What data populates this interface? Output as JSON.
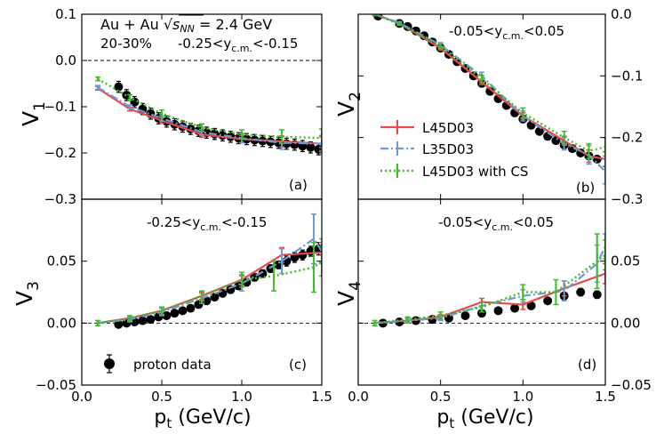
{
  "chart_data": [
    {
      "type": "line",
      "id": "a",
      "panel_label": "(a)",
      "ylabel": "V",
      "ylabel_sub": "1",
      "xlabel": "",
      "annotations": {
        "line1_main": "Au + Au ",
        "line1_sqrt_s": "s",
        "line1_sqrt_sub": "NN",
        "line1_rest": " = 2.4 GeV",
        "line2_centrality": "20-30%",
        "line2_y_pre": "-0.25<y",
        "line2_y_sub": "c.m.",
        "line2_y_post": "<-0.15"
      },
      "xlim": [
        0.0,
        1.5
      ],
      "ylim": [
        -0.3,
        0.1
      ],
      "yticks": [
        -0.3,
        -0.2,
        -0.1,
        0.0,
        0.1
      ],
      "ytick_labels": [
        "−0.3",
        "−0.2",
        "−0.1",
        "0.0",
        "0.1"
      ],
      "reference_line": 0.0,
      "series": [
        {
          "name": "proton data",
          "style": "data",
          "x": [
            0.23,
            0.28,
            0.33,
            0.38,
            0.43,
            0.48,
            0.53,
            0.58,
            0.63,
            0.68,
            0.73,
            0.78,
            0.83,
            0.88,
            0.93,
            0.98,
            1.03,
            1.08,
            1.13,
            1.18,
            1.23,
            1.28,
            1.33,
            1.38,
            1.43,
            1.48
          ],
          "y": [
            -0.057,
            -0.075,
            -0.09,
            -0.105,
            -0.115,
            -0.125,
            -0.132,
            -0.138,
            -0.143,
            -0.148,
            -0.152,
            -0.156,
            -0.159,
            -0.162,
            -0.165,
            -0.168,
            -0.17,
            -0.172,
            -0.174,
            -0.176,
            -0.178,
            -0.18,
            -0.182,
            -0.185,
            -0.188,
            -0.192
          ],
          "err": [
            0.012,
            0.012,
            0.012,
            0.012,
            0.012,
            0.012,
            0.012,
            0.012,
            0.012,
            0.012,
            0.012,
            0.012,
            0.012,
            0.012,
            0.012,
            0.012,
            0.012,
            0.012,
            0.012,
            0.012,
            0.012,
            0.012,
            0.012,
            0.012,
            0.012,
            0.012
          ]
        },
        {
          "name": "L45D03",
          "style": "red",
          "x": [
            0.1,
            0.3,
            0.5,
            0.75,
            1.0,
            1.25,
            1.5
          ],
          "y": [
            -0.06,
            -0.105,
            -0.13,
            -0.16,
            -0.17,
            -0.175,
            -0.18
          ],
          "err": [
            0.004,
            0.004,
            0.006,
            0.006,
            0.008,
            0.012,
            0.015
          ]
        },
        {
          "name": "L35D03",
          "style": "blue",
          "x": [
            0.1,
            0.3,
            0.5,
            0.75,
            1.0,
            1.25,
            1.5
          ],
          "y": [
            -0.058,
            -0.1,
            -0.125,
            -0.155,
            -0.168,
            -0.178,
            -0.18
          ],
          "err": [
            0.004,
            0.004,
            0.006,
            0.006,
            0.01,
            0.014,
            0.018
          ]
        },
        {
          "name": "L45D03 with CS",
          "style": "green",
          "x": [
            0.1,
            0.3,
            0.5,
            0.75,
            1.0,
            1.25,
            1.5
          ],
          "y": [
            -0.04,
            -0.08,
            -0.115,
            -0.145,
            -0.16,
            -0.165,
            -0.168
          ],
          "err": [
            0.004,
            0.006,
            0.008,
            0.008,
            0.01,
            0.015,
            0.02
          ]
        }
      ]
    },
    {
      "type": "line",
      "id": "b",
      "panel_label": "(b)",
      "ylabel": "V",
      "ylabel_sub": "2",
      "xlabel": "",
      "annotations": {
        "y_pre": "-0.05<y",
        "y_sub": "c.m.",
        "y_post": "<0.05"
      },
      "xlim": [
        0.0,
        1.5
      ],
      "ylim": [
        -0.3,
        0.0
      ],
      "yticks": [
        -0.3,
        -0.2,
        -0.1,
        0.0
      ],
      "ytick_labels": [
        "−0.3",
        "−0.2",
        "−0.1",
        "0.0"
      ],
      "series": [
        {
          "name": "proton data",
          "style": "data",
          "x": [
            0.12,
            0.25,
            0.3,
            0.35,
            0.4,
            0.45,
            0.5,
            0.55,
            0.6,
            0.65,
            0.7,
            0.75,
            0.8,
            0.85,
            0.9,
            0.95,
            1.0,
            1.05,
            1.1,
            1.15,
            1.2,
            1.25,
            1.3,
            1.35,
            1.4,
            1.45
          ],
          "y": [
            -0.003,
            -0.015,
            -0.02,
            -0.027,
            -0.035,
            -0.045,
            -0.055,
            -0.065,
            -0.077,
            -0.088,
            -0.1,
            -0.112,
            -0.125,
            -0.137,
            -0.148,
            -0.16,
            -0.17,
            -0.18,
            -0.19,
            -0.198,
            -0.205,
            -0.212,
            -0.218,
            -0.225,
            -0.23,
            -0.235
          ],
          "err": [
            0.003,
            0.003,
            0.003,
            0.003,
            0.003,
            0.003,
            0.003,
            0.003,
            0.003,
            0.003,
            0.003,
            0.003,
            0.003,
            0.003,
            0.003,
            0.003,
            0.003,
            0.003,
            0.003,
            0.003,
            0.003,
            0.003,
            0.003,
            0.003,
            0.003,
            0.003
          ]
        },
        {
          "name": "L45D03",
          "style": "red",
          "x": [
            0.1,
            0.25,
            0.5,
            0.75,
            1.0,
            1.25,
            1.4,
            1.5
          ],
          "y": [
            0.0,
            -0.015,
            -0.055,
            -0.11,
            -0.165,
            -0.205,
            -0.23,
            -0.235
          ],
          "err": [
            0.002,
            0.002,
            0.003,
            0.004,
            0.005,
            0.007,
            0.01,
            0.012
          ]
        },
        {
          "name": "L35D03",
          "style": "blue",
          "x": [
            0.1,
            0.25,
            0.5,
            0.75,
            1.0,
            1.25,
            1.4,
            1.5
          ],
          "y": [
            0.0,
            -0.014,
            -0.05,
            -0.1,
            -0.165,
            -0.21,
            -0.228,
            -0.255
          ],
          "err": [
            0.002,
            0.002,
            0.004,
            0.006,
            0.008,
            0.01,
            0.015,
            0.02
          ]
        },
        {
          "name": "L45D03 with CS",
          "style": "green",
          "x": [
            0.1,
            0.25,
            0.5,
            0.75,
            1.0,
            1.25,
            1.4,
            1.5
          ],
          "y": [
            0.0,
            -0.016,
            -0.052,
            -0.105,
            -0.16,
            -0.2,
            -0.222,
            -0.215
          ],
          "err": [
            0.002,
            0.002,
            0.004,
            0.006,
            0.008,
            0.01,
            0.012,
            0.015
          ]
        }
      ]
    },
    {
      "type": "line",
      "id": "c",
      "panel_label": "(c)",
      "ylabel": "V",
      "ylabel_sub": "3",
      "xlabel": "p",
      "xlabel_sub": "t",
      "xlabel_rest": " (GeV/c)",
      "annotations": {
        "y_pre": "-0.25<y",
        "y_sub": "c.m.",
        "y_post": "<-0.15"
      },
      "xlim": [
        0.0,
        1.5
      ],
      "ylim": [
        -0.05,
        0.1
      ],
      "yticks": [
        -0.05,
        0.0,
        0.05
      ],
      "ytick_labels": [
        "−0.05",
        "0.00",
        "0.05"
      ],
      "xticks": [
        0.0,
        0.5,
        1.0,
        1.5
      ],
      "xtick_labels": [
        "0.0",
        "0.5",
        "1.0",
        "1.5"
      ],
      "reference_line": 0.0,
      "series": [
        {
          "name": "proton data",
          "style": "data",
          "x": [
            0.23,
            0.28,
            0.33,
            0.38,
            0.43,
            0.48,
            0.53,
            0.58,
            0.63,
            0.68,
            0.73,
            0.78,
            0.83,
            0.88,
            0.93,
            0.98,
            1.03,
            1.08,
            1.13,
            1.18,
            1.23,
            1.28,
            1.33,
            1.38,
            1.43,
            1.48
          ],
          "y": [
            -0.001,
            0.0,
            0.001,
            0.002,
            0.003,
            0.005,
            0.006,
            0.008,
            0.01,
            0.012,
            0.015,
            0.018,
            0.021,
            0.024,
            0.027,
            0.03,
            0.033,
            0.037,
            0.04,
            0.044,
            0.047,
            0.05,
            0.053,
            0.055,
            0.058,
            0.06
          ],
          "err": [
            0.002,
            0.002,
            0.002,
            0.002,
            0.002,
            0.002,
            0.002,
            0.002,
            0.002,
            0.002,
            0.002,
            0.002,
            0.002,
            0.002,
            0.002,
            0.002,
            0.003,
            0.003,
            0.003,
            0.003,
            0.003,
            0.004,
            0.004,
            0.004,
            0.004,
            0.005
          ]
        },
        {
          "name": "L45D03",
          "style": "red",
          "x": [
            0.1,
            0.3,
            0.5,
            0.75,
            1.0,
            1.25,
            1.5
          ],
          "y": [
            0.0,
            0.004,
            0.01,
            0.022,
            0.035,
            0.055,
            0.057
          ],
          "err": [
            0.002,
            0.002,
            0.003,
            0.003,
            0.004,
            0.006,
            0.008
          ]
        },
        {
          "name": "L35D03",
          "style": "blue",
          "x": [
            0.1,
            0.3,
            0.5,
            0.75,
            1.0,
            1.25,
            1.45,
            1.5
          ],
          "y": [
            0.0,
            0.003,
            0.009,
            0.02,
            0.032,
            0.05,
            0.068,
            0.058
          ],
          "err": [
            0.002,
            0.002,
            0.003,
            0.004,
            0.006,
            0.01,
            0.02,
            0.01
          ]
        },
        {
          "name": "L45D03 with CS",
          "style": "green",
          "x": [
            0.1,
            0.3,
            0.5,
            0.75,
            1.0,
            1.2,
            1.45,
            1.5
          ],
          "y": [
            0.0,
            0.004,
            0.01,
            0.022,
            0.035,
            0.038,
            0.045,
            0.05
          ],
          "err": [
            0.002,
            0.002,
            0.003,
            0.004,
            0.006,
            0.012,
            0.02,
            0.012
          ]
        }
      ],
      "legend": {
        "placement": "bottom-left",
        "entries": [
          "proton data"
        ]
      }
    },
    {
      "type": "line",
      "id": "d",
      "panel_label": "(d)",
      "ylabel": "V",
      "ylabel_sub": "4",
      "xlabel": "p",
      "xlabel_sub": "t",
      "xlabel_rest": " (GeV/c)",
      "annotations": {
        "y_pre": "-0.05<y",
        "y_sub": "c.m.",
        "y_post": "<0.05"
      },
      "xlim": [
        0.0,
        1.5
      ],
      "ylim": [
        -0.05,
        0.1
      ],
      "yticks": [
        -0.05,
        0.0,
        0.05
      ],
      "ytick_labels": [
        "−0.05",
        "0.00",
        "0.05"
      ],
      "xticks": [
        0.0,
        0.5,
        1.0,
        1.5
      ],
      "xtick_labels": [
        "0.0",
        "0.5",
        "1.0",
        "1.5"
      ],
      "reference_line": 0.0,
      "series": [
        {
          "name": "proton data",
          "style": "data",
          "x": [
            0.15,
            0.25,
            0.35,
            0.45,
            0.55,
            0.65,
            0.75,
            0.85,
            0.95,
            1.05,
            1.15,
            1.25,
            1.35,
            1.45
          ],
          "y": [
            0.0,
            0.001,
            0.002,
            0.003,
            0.004,
            0.006,
            0.008,
            0.01,
            0.012,
            0.014,
            0.018,
            0.022,
            0.025,
            0.023
          ],
          "err": [
            0.001,
            0.001,
            0.001,
            0.001,
            0.001,
            0.001,
            0.001,
            0.001,
            0.002,
            0.002,
            0.002,
            0.002,
            0.003,
            0.003
          ]
        },
        {
          "name": "L45D03",
          "style": "red",
          "x": [
            0.1,
            0.3,
            0.5,
            0.75,
            1.0,
            1.25,
            1.5
          ],
          "y": [
            0.0,
            0.002,
            0.005,
            0.017,
            0.015,
            0.028,
            0.04
          ],
          "err": [
            0.002,
            0.002,
            0.002,
            0.003,
            0.004,
            0.006,
            0.008
          ]
        },
        {
          "name": "L35D03",
          "style": "blue",
          "x": [
            0.1,
            0.3,
            0.5,
            0.75,
            1.0,
            1.25,
            1.45,
            1.5
          ],
          "y": [
            0.0,
            0.002,
            0.004,
            0.014,
            0.022,
            0.026,
            0.048,
            0.062
          ],
          "err": [
            0.002,
            0.002,
            0.002,
            0.003,
            0.005,
            0.008,
            0.015,
            0.01
          ]
        },
        {
          "name": "L45D03 with CS",
          "style": "green",
          "x": [
            0.1,
            0.3,
            0.5,
            0.75,
            1.0,
            1.2,
            1.45,
            1.5
          ],
          "y": [
            0.0,
            0.003,
            0.006,
            0.013,
            0.025,
            0.025,
            0.05,
            0.055
          ],
          "err": [
            0.002,
            0.002,
            0.003,
            0.004,
            0.006,
            0.01,
            0.022,
            0.012
          ]
        }
      ]
    }
  ],
  "legend_models": {
    "placement": "panel-b-lower-left",
    "entries": [
      {
        "label": "L45D03",
        "style": "red"
      },
      {
        "label": "L35D03",
        "style": "blue"
      },
      {
        "label": "L45D03 with CS",
        "style": "green"
      }
    ]
  },
  "legend_data_label": "proton data",
  "styles": {
    "red": {
      "color": "#e84a4a",
      "dash": "",
      "width": 2.2
    },
    "blue": {
      "color": "#6b9ad6",
      "dash": "9,3,2,3",
      "width": 2.2
    },
    "green": {
      "color": "#3bbf23",
      "dash": "2,3",
      "width": 2.4
    },
    "data": {
      "color": "#000000"
    }
  }
}
